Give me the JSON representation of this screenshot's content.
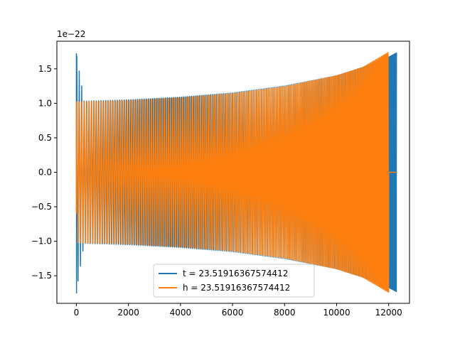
{
  "chart_data": {
    "type": "line",
    "title": "",
    "xlabel": "",
    "ylabel": "",
    "offset_text": "1e−22",
    "xlim": [
      -750,
      12800
    ],
    "ylim": [
      -1.9,
      1.9
    ],
    "xticks": [
      0,
      2000,
      4000,
      6000,
      8000,
      10000,
      12000
    ],
    "xtick_labels": [
      "0",
      "2000",
      "4000",
      "6000",
      "8000",
      "10000",
      "12000"
    ],
    "yticks": [
      -1.5,
      -1.0,
      -0.5,
      0.0,
      0.5,
      1.0,
      1.5
    ],
    "ytick_labels": [
      "−1.5",
      "−1.0",
      "−0.5",
      "0.0",
      "0.5",
      "1.0",
      "1.5"
    ],
    "grid": false,
    "legend_position": "lower-center",
    "series": [
      {
        "name": "t = 23.51916367574412",
        "color": "#1f77b4",
        "description_points": {
          "x": [
            0,
            300,
            2000,
            4000,
            6000,
            8000,
            10000,
            11000,
            12000,
            12300
          ],
          "amplitude": [
            1.72,
            1.03,
            1.05,
            1.09,
            1.15,
            1.25,
            1.4,
            1.52,
            1.67,
            1.73
          ]
        },
        "x_end": 12300
      },
      {
        "name": "h = 23.51916367574412",
        "color": "#ff7f0e",
        "description_points": {
          "x": [
            0,
            2000,
            4000,
            6000,
            8000,
            10000,
            11000,
            12000
          ],
          "amplitude": [
            1.02,
            1.04,
            1.08,
            1.14,
            1.24,
            1.4,
            1.52,
            1.74
          ]
        },
        "x_end": 12000,
        "tail_end": 12300
      }
    ]
  }
}
